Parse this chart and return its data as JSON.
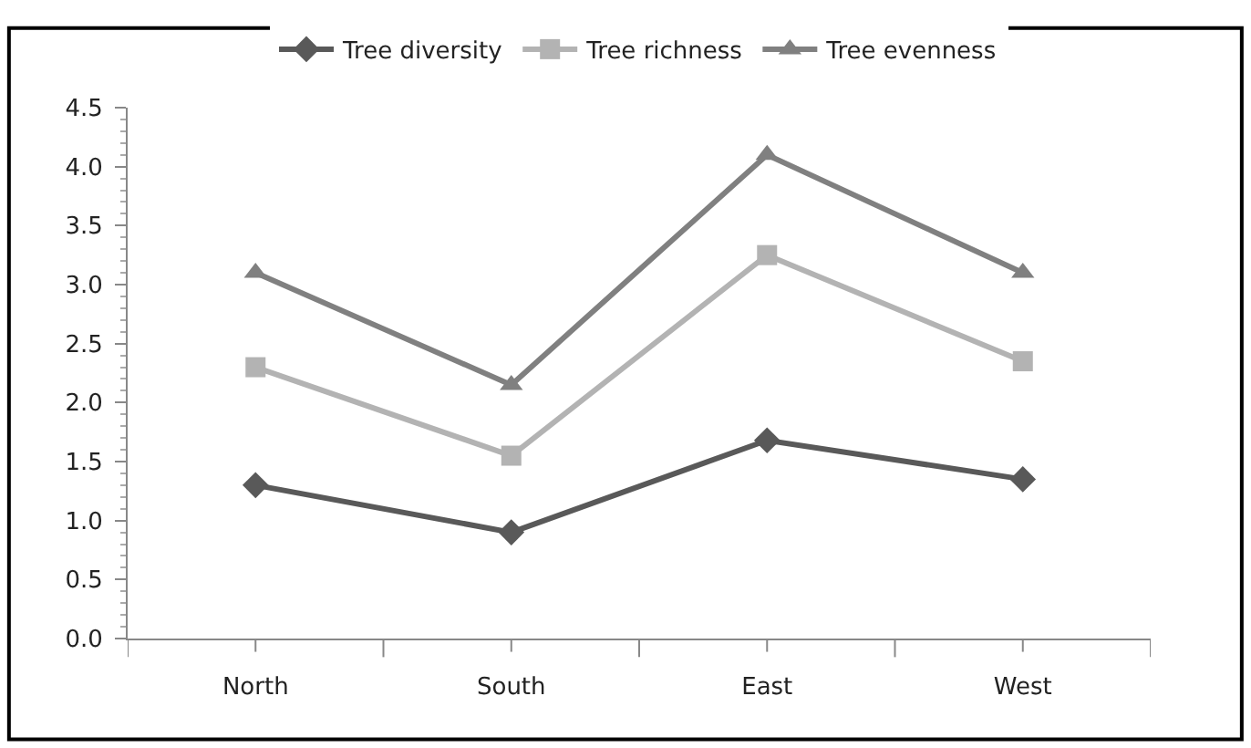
{
  "chart_data": {
    "type": "line",
    "categories": [
      "North",
      "South",
      "East",
      "West"
    ],
    "series": [
      {
        "name": "Tree diversity",
        "color": "#595959",
        "marker": "diamond",
        "values": [
          1.3,
          0.9,
          1.68,
          1.35
        ]
      },
      {
        "name": "Tree richness",
        "color": "#b3b3b3",
        "marker": "square",
        "values": [
          2.3,
          1.55,
          3.25,
          2.35
        ]
      },
      {
        "name": "Tree evenness",
        "color": "#808080",
        "marker": "triangle",
        "values": [
          3.1,
          2.15,
          4.1,
          3.1
        ]
      }
    ],
    "ylim": [
      0,
      4.5
    ],
    "yticks": [
      {
        "value": 0,
        "label": "0.0"
      },
      {
        "value": 0.5,
        "label": "0.5"
      },
      {
        "value": 1,
        "label": "1.0"
      },
      {
        "value": 1.5,
        "label": "1.5"
      },
      {
        "value": 2,
        "label": "2.0"
      },
      {
        "value": 2.5,
        "label": "2.5"
      },
      {
        "value": 3,
        "label": "3.0"
      },
      {
        "value": 3.5,
        "label": "3.5"
      },
      {
        "value": 4,
        "label": "4.0"
      },
      {
        "value": 4.5,
        "label": "4.5"
      }
    ],
    "legend": "top",
    "line_style": "solid"
  }
}
